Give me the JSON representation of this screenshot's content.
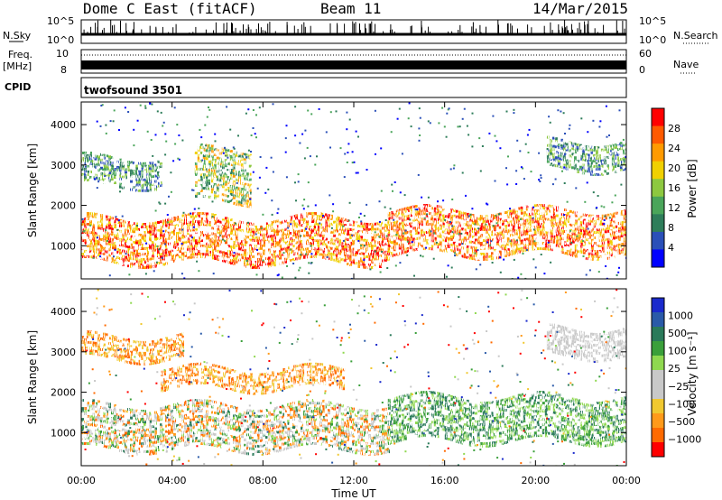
{
  "header": {
    "station": "Dome C East (fitACF)",
    "beam": "Beam 11",
    "date": "14/Mar/2015"
  },
  "strips": {
    "nsky_label": "N.Sky",
    "nsky_ticks": [
      "10^5",
      "10^0"
    ],
    "nsearch_label": "N.Search",
    "freq_label": "Freq.",
    "freq_unit": "[MHz]",
    "freq_ticks": [
      "10",
      "8"
    ],
    "nave_ticks": [
      "60",
      "0"
    ],
    "nave_label": "Nave",
    "cpid_label": "CPID",
    "cpid_value": "twofsound 3501"
  },
  "colors": {
    "power_scale": [
      "#0000ff",
      "#2a4fb8",
      "#2e7d5a",
      "#4aa55a",
      "#8dc840",
      "#f0d000",
      "#ff9a00",
      "#ff5a00",
      "#ff0000"
    ],
    "velocity_scale": [
      "#ff0000",
      "#ff6a00",
      "#ff9a1a",
      "#f0c830",
      "#c8c8c8",
      "#c8c8c8",
      "#8fd850",
      "#3a9f3a",
      "#2a7a5a",
      "#2a5aa8",
      "#1a2acc"
    ]
  },
  "chart_data": [
    {
      "type": "heatmap",
      "panel": "power",
      "ylabel": "Slant Range [km]",
      "yticks": [
        "4000",
        "3000",
        "2000",
        "1000"
      ],
      "ylim": [
        180,
        4560
      ],
      "xticks": [
        "00:00",
        "04:00",
        "08:00",
        "12:00",
        "16:00",
        "20:00",
        "00:00"
      ],
      "xlim": [
        0,
        24
      ],
      "colorbar_label": "Power [dB]",
      "colorbar_ticks": [
        "28",
        "24",
        "20",
        "16",
        "12",
        "8",
        "4"
      ],
      "colorbar_range": [
        0,
        30
      ],
      "echo_bands": [
        {
          "t_start": 0,
          "t_end": 13.5,
          "range_min": 600,
          "range_max": 1700,
          "level": "strong"
        },
        {
          "t_start": 13.5,
          "t_end": 24,
          "range_min": 800,
          "range_max": 1900,
          "level": "strong"
        },
        {
          "t_start": 5.0,
          "t_end": 7.5,
          "range_min": 2100,
          "range_max": 3400,
          "level": "medium"
        },
        {
          "t_start": 0,
          "t_end": 3.5,
          "range_min": 2500,
          "range_max": 3200,
          "level": "weak"
        },
        {
          "t_start": 20.5,
          "t_end": 24,
          "range_min": 2900,
          "range_max": 3600,
          "level": "weak"
        }
      ]
    },
    {
      "type": "heatmap",
      "panel": "velocity",
      "ylabel": "Slant Range [km]",
      "yticks": [
        "4000",
        "3000",
        "2000",
        "1000"
      ],
      "ylim": [
        180,
        4560
      ],
      "xticks": [
        "00:00",
        "04:00",
        "08:00",
        "12:00",
        "16:00",
        "20:00",
        "00:00"
      ],
      "xlim": [
        0,
        24
      ],
      "xlabel": "Time UT",
      "colorbar_label": "Velocity [m s⁻¹]",
      "colorbar_ticks": [
        "1000",
        "500",
        "100",
        "25",
        "−25",
        "−100",
        "−500",
        "−1000"
      ],
      "colorbar_range": [
        -1000,
        1000
      ],
      "echo_bands": [
        {
          "t_start": 0,
          "t_end": 13.5,
          "range_min": 600,
          "range_max": 1700,
          "level": "mixed"
        },
        {
          "t_start": 13.5,
          "t_end": 24,
          "range_min": 800,
          "range_max": 1900,
          "level": "toward"
        },
        {
          "t_start": 3.5,
          "t_end": 11.5,
          "range_min": 2100,
          "range_max": 2600,
          "level": "away"
        },
        {
          "t_start": 0,
          "t_end": 4.5,
          "range_min": 2800,
          "range_max": 3400,
          "level": "away"
        },
        {
          "t_start": 20.5,
          "t_end": 24,
          "range_min": 2900,
          "range_max": 3600,
          "level": "neutral"
        }
      ]
    }
  ]
}
